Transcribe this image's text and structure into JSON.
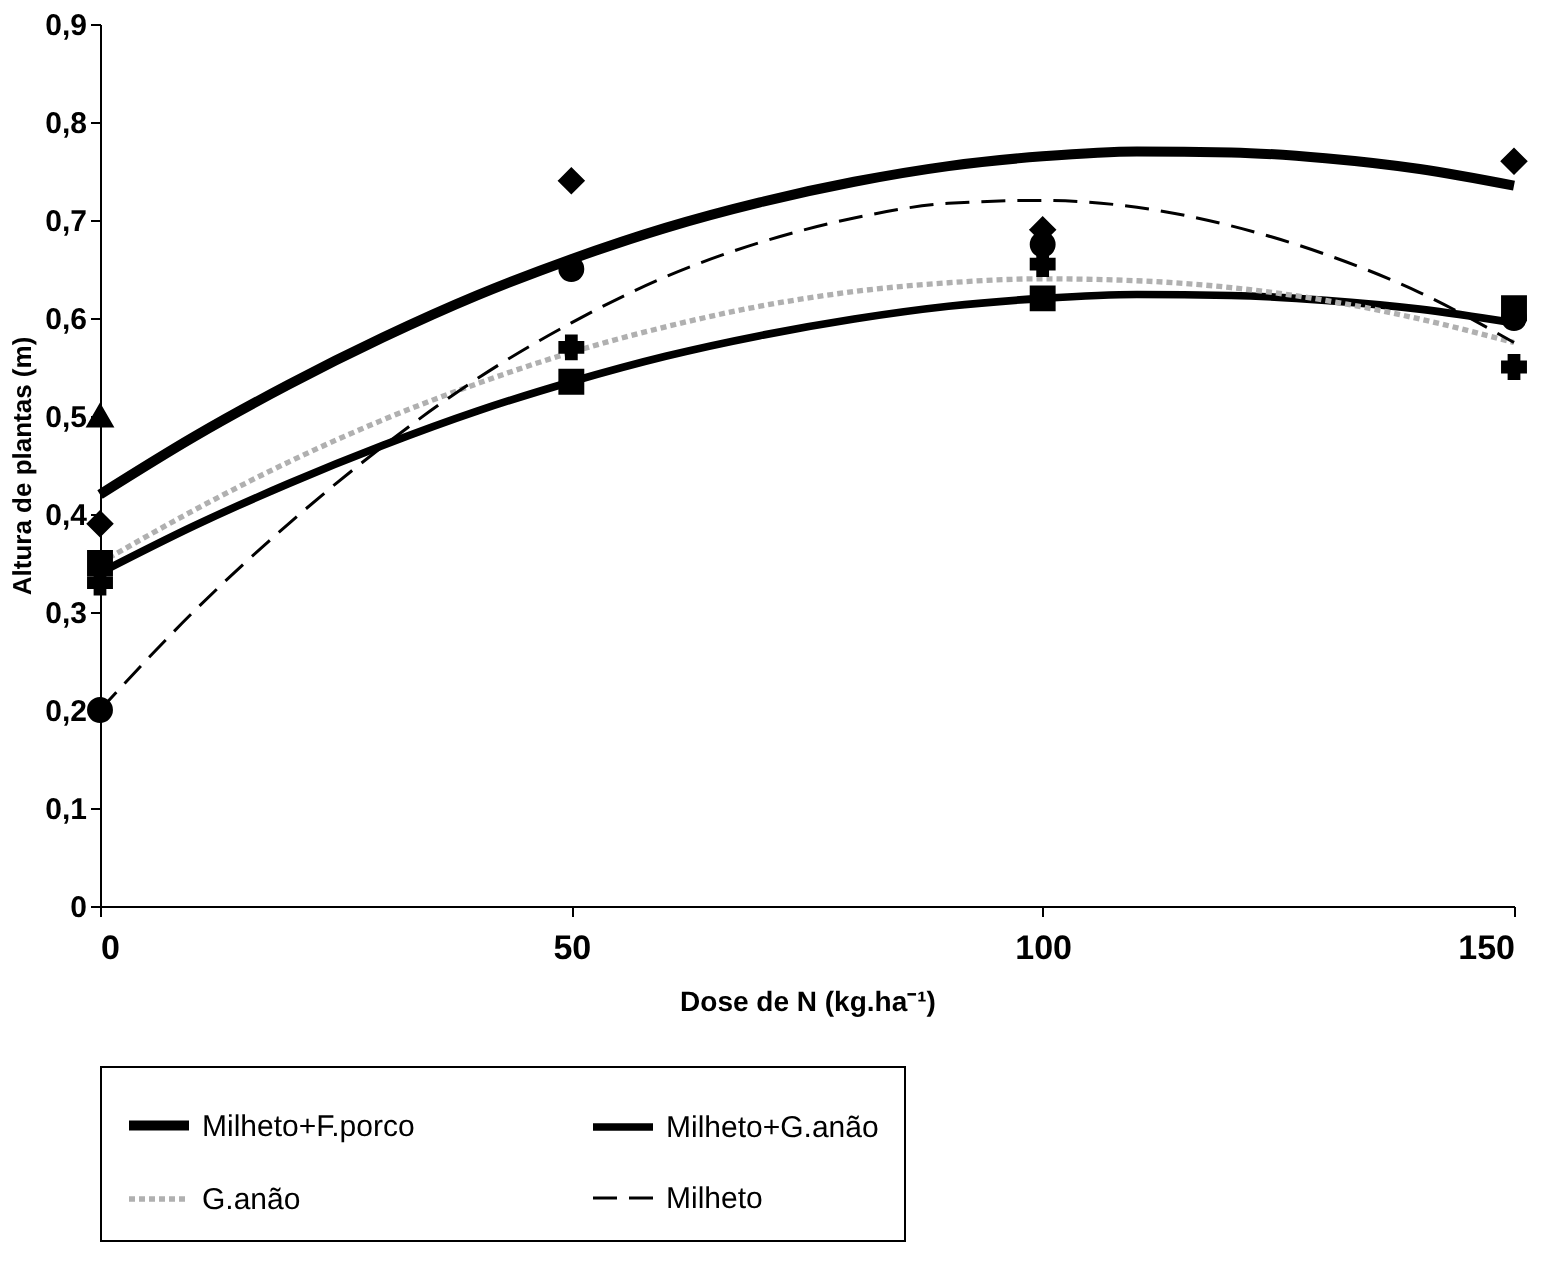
{
  "chart_data": {
    "type": "line",
    "xlabel": "Dose de N (kg.ha⁻¹)",
    "ylabel": "Altura de plantas (m)",
    "xlim": [
      0,
      150
    ],
    "xticks": [
      0,
      50,
      100,
      150
    ],
    "ylim": [
      0,
      0.9
    ],
    "yticks": [
      0,
      {
        "value": 0.1,
        "label": "0,1"
      },
      {
        "value": 0.2,
        "label": "0,2"
      },
      {
        "value": 0.3,
        "label": "0,3"
      },
      {
        "value": 0.4,
        "label": "0,4"
      },
      {
        "value": 0.5,
        "label": "0,5"
      },
      {
        "value": 0.6,
        "label": "0,6"
      },
      {
        "value": 0.7,
        "label": "0,7"
      },
      {
        "value": 0.8,
        "label": "0,8"
      },
      {
        "value": 0.9,
        "label": "0,9"
      }
    ],
    "grid": false,
    "legend": "bottom",
    "series": [
      {
        "name": "Milheto+F.porco",
        "color": "#000000",
        "line_style": "solid",
        "marker": "none",
        "x": [
          0,
          10,
          20,
          30,
          40,
          50,
          60,
          70,
          80,
          90,
          100,
          110,
          120,
          130,
          140,
          150
        ],
        "values": [
          0.42,
          0.479,
          0.532,
          0.58,
          0.623,
          0.66,
          0.692,
          0.718,
          0.739,
          0.755,
          0.765,
          0.77,
          0.769,
          0.763,
          0.752,
          0.735
        ]
      },
      {
        "name": "Milheto+G.anão",
        "color": "#000000",
        "line_style": "solid",
        "marker": "none",
        "x": [
          0,
          10,
          20,
          30,
          40,
          50,
          60,
          70,
          80,
          90,
          100,
          110,
          120,
          130,
          140,
          150
        ],
        "values": [
          0.34,
          0.388,
          0.431,
          0.47,
          0.505,
          0.535,
          0.561,
          0.582,
          0.599,
          0.612,
          0.62,
          0.624,
          0.623,
          0.618,
          0.609,
          0.595
        ]
      },
      {
        "name": "G.anão",
        "color": "#b0b0b0",
        "line_style": "dotted",
        "marker": "none",
        "x": [
          0,
          10,
          20,
          30,
          40,
          50,
          60,
          70,
          80,
          90,
          100,
          110,
          120,
          130,
          140,
          150
        ],
        "values": [
          0.35,
          0.404,
          0.453,
          0.496,
          0.533,
          0.565,
          0.591,
          0.612,
          0.627,
          0.636,
          0.64,
          0.638,
          0.631,
          0.618,
          0.599,
          0.575
        ]
      },
      {
        "name": "Milheto",
        "color": "#000000",
        "line_style": "dashed",
        "marker": "none",
        "x": [
          0,
          10,
          20,
          30,
          40,
          50,
          60,
          70,
          80,
          90,
          100,
          110,
          120,
          130,
          140,
          150
        ],
        "values": [
          0.2,
          0.301,
          0.39,
          0.469,
          0.538,
          0.595,
          0.642,
          0.677,
          0.702,
          0.717,
          0.72,
          0.713,
          0.694,
          0.665,
          0.626,
          0.575
        ]
      },
      {
        "type": "scatter",
        "color": "#000000",
        "marker": "diamond",
        "x": [
          0,
          50,
          100,
          150
        ],
        "values": [
          0.39,
          0.74,
          0.69,
          0.76
        ]
      },
      {
        "type": "scatter",
        "color": "#000000",
        "marker": "square",
        "x": [
          0,
          50,
          100,
          150
        ],
        "values": [
          0.35,
          0.535,
          0.62,
          0.61
        ]
      },
      {
        "type": "scatter",
        "color": "#000000",
        "marker": "triangle",
        "x": [
          0
        ],
        "values": [
          0.5
        ]
      },
      {
        "type": "scatter",
        "color": "#000000",
        "marker": "cross",
        "x": [
          0,
          50,
          100,
          150
        ],
        "values": [
          0.33,
          0.57,
          0.655,
          0.55
        ]
      },
      {
        "type": "scatter",
        "color": "#000000",
        "marker": "circle",
        "x": [
          0,
          50,
          100,
          150
        ],
        "values": [
          0.2,
          0.65,
          0.675,
          0.6
        ]
      }
    ]
  }
}
